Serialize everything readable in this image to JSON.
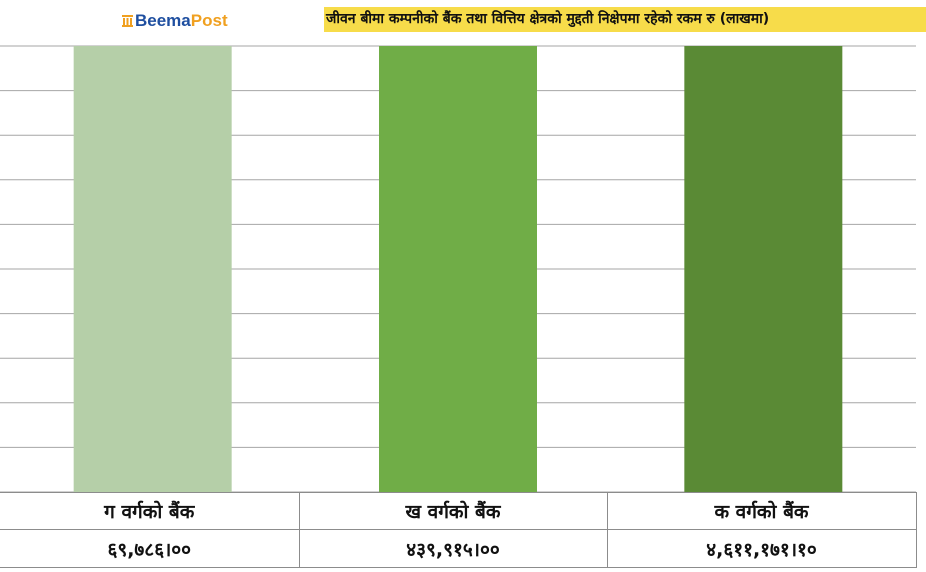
{
  "header": {
    "logo_text_1": "Beema",
    "logo_text_2": "Post",
    "title": "जीवन बीमा कम्पनीको बैंक तथा वित्तिय क्षेत्रको मुद्दती निक्षेपमा रहेको रकम रु (लाखमा)"
  },
  "colors": {
    "title_bg": "#f7dc4a",
    "logo_primary": "#1f4fa0",
    "logo_accent": "#f0a020",
    "gridline": "#a6a6a6"
  },
  "chart_data": {
    "type": "bar",
    "title": "जीवन बीमा कम्पनीको बैंक तथा वित्तिय क्षेत्रको मुद्दती निक्षेपमा रहेको रकम रु (लाखमा)",
    "categories": [
      "ग वर्गको बैंक",
      "ख वर्गको बैंक",
      "क वर्गको बैंक"
    ],
    "values_label": [
      "६९,७८६।००",
      "४३९,९१५।००",
      "४,६११,१७१।१०"
    ],
    "values": [
      69786.0,
      439915.0,
      4611171.1
    ],
    "bar_colors": [
      "#b5cfa8",
      "#70ad47",
      "#5a8a35"
    ],
    "bar_fill_fraction": [
      1,
      1,
      1
    ],
    "grid": true,
    "data_table": true,
    "legend": "none"
  }
}
